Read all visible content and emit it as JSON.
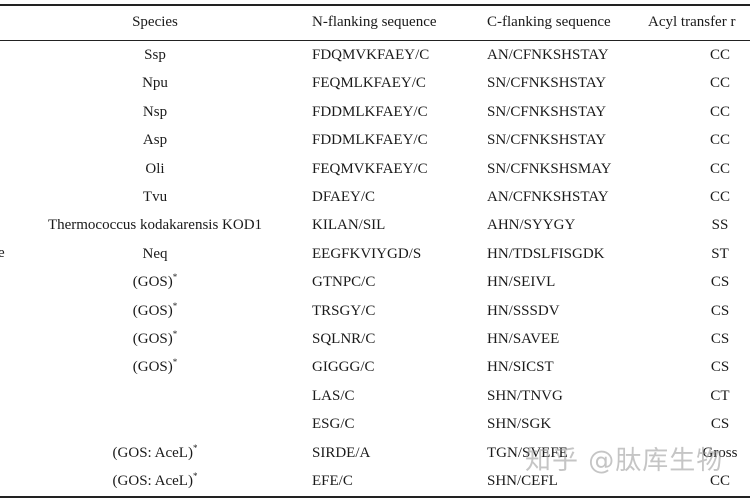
{
  "headers": {
    "species": "Species",
    "n_flank": "N-flanking sequence",
    "c_flank": "C-flanking sequence",
    "acyl": "Acyl transfer r"
  },
  "side_label": "e",
  "rows": [
    {
      "species": "Ssp",
      "sup": "",
      "n": "FDQMVKFAEY/C",
      "c": "AN/CFNKSHSTAY",
      "acyl": "CC"
    },
    {
      "species": "Npu",
      "sup": "",
      "n": "FEQMLKFAEY/C",
      "c": "SN/CFNKSHSTAY",
      "acyl": "CC"
    },
    {
      "species": "Nsp",
      "sup": "",
      "n": "FDDMLKFAEY/C",
      "c": "SN/CFNKSHSTAY",
      "acyl": "CC"
    },
    {
      "species": "Asp",
      "sup": "",
      "n": "FDDMLKFAEY/C",
      "c": "SN/CFNKSHSTAY",
      "acyl": "CC"
    },
    {
      "species": "Oli",
      "sup": "",
      "n": "FEQMVKFAEY/C",
      "c": "SN/CFNKSHSMAY",
      "acyl": "CC"
    },
    {
      "species": "Tvu",
      "sup": "",
      "n": "DFAEY/C",
      "c": "AN/CFNKSHSTAY",
      "acyl": "CC"
    },
    {
      "species": "Thermococcus kodakarensis KOD1",
      "sup": "",
      "n": "KILAN/SIL",
      "c": "AHN/SYYGY",
      "acyl": "SS"
    },
    {
      "species": "Neq",
      "sup": "",
      "n": "EEGFKVIYGD/S",
      "c": "HN/TDSLFISGDK",
      "acyl": "ST"
    },
    {
      "species": "(GOS)",
      "sup": "*",
      "n": "GTNPC/C",
      "c": "HN/SEIVL",
      "acyl": "CS"
    },
    {
      "species": "(GOS)",
      "sup": "*",
      "n": "TRSGY/C",
      "c": "HN/SSSDV",
      "acyl": "CS"
    },
    {
      "species": "(GOS)",
      "sup": "*",
      "n": "SQLNR/C",
      "c": "HN/SAVEE",
      "acyl": "CS"
    },
    {
      "species": "(GOS)",
      "sup": "*",
      "n": "GIGGG/C",
      "c": "HN/SICST",
      "acyl": "CS"
    },
    {
      "species": "",
      "sup": "",
      "n": "LAS/C",
      "c": "SHN/TNVG",
      "acyl": "CT"
    },
    {
      "species": "",
      "sup": "",
      "n": "ESG/C",
      "c": "SHN/SGK",
      "acyl": "CS"
    },
    {
      "species": "(GOS: AceL)",
      "sup": "*",
      "n": "SIRDE/A",
      "c": "TGN/SVEFE",
      "acyl": "Gross"
    },
    {
      "species": "(GOS: AceL)",
      "sup": "*",
      "n": "EFE/C",
      "c": "SHN/CEFL",
      "acyl": "CC"
    }
  ],
  "watermark": "知乎 @肽库生物"
}
